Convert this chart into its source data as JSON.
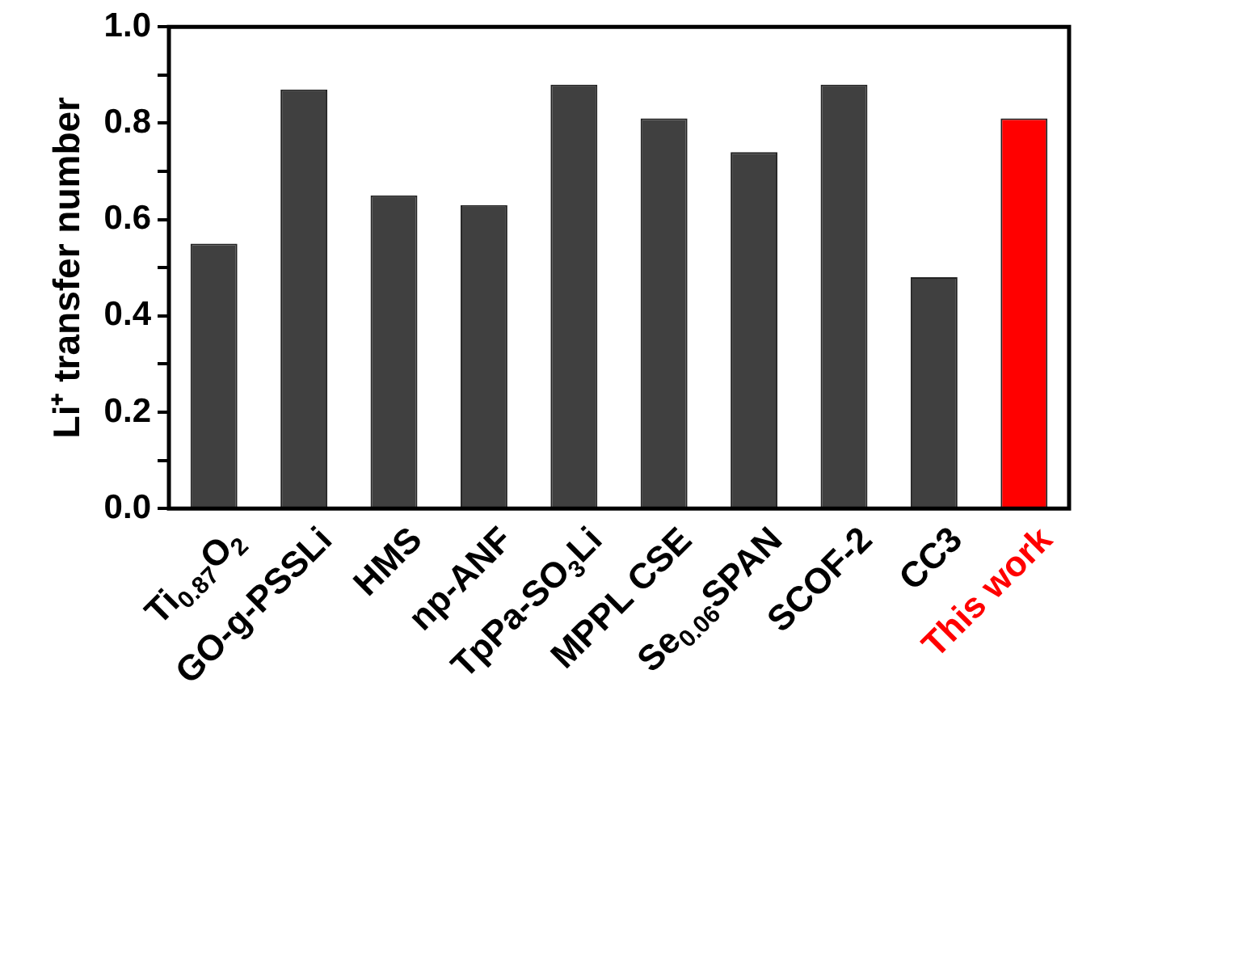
{
  "chart_data": {
    "type": "bar",
    "ylabel": "Li⁺ transfer number",
    "categories": [
      "Ti$_{0.87}$O$_{2}$",
      "GO-g-PSSLi",
      "HMS",
      "np-ANF",
      "TpPa-SO$_{3}$Li",
      "MPPL CSE",
      "Se$_{0.06}$SPAN",
      "SCOF-2",
      "CC3",
      "This work"
    ],
    "values": [
      0.55,
      0.87,
      0.65,
      0.63,
      0.88,
      0.81,
      0.74,
      0.88,
      0.48,
      0.81
    ],
    "colors": [
      "#404040",
      "#404040",
      "#404040",
      "#404040",
      "#404040",
      "#404040",
      "#404040",
      "#404040",
      "#404040",
      "#ff0000"
    ],
    "ylim": [
      0,
      1.0
    ],
    "yticks": [
      {
        "value": 0,
        "label": "0.0"
      },
      {
        "value": 0.1,
        "label": null
      },
      {
        "value": 0.2,
        "label": "0.2"
      },
      {
        "value": 0.3,
        "label": null
      },
      {
        "value": 0.4,
        "label": "0.4"
      },
      {
        "value": 0.5,
        "label": null
      },
      {
        "value": 0.6,
        "label": "0.6"
      },
      {
        "value": 0.7,
        "label": null
      },
      {
        "value": 0.8,
        "label": "0.8"
      },
      {
        "value": 0.9,
        "label": null
      },
      {
        "value": 1.0,
        "label": "1.0"
      }
    ],
    "grid": false,
    "legend": false
  }
}
